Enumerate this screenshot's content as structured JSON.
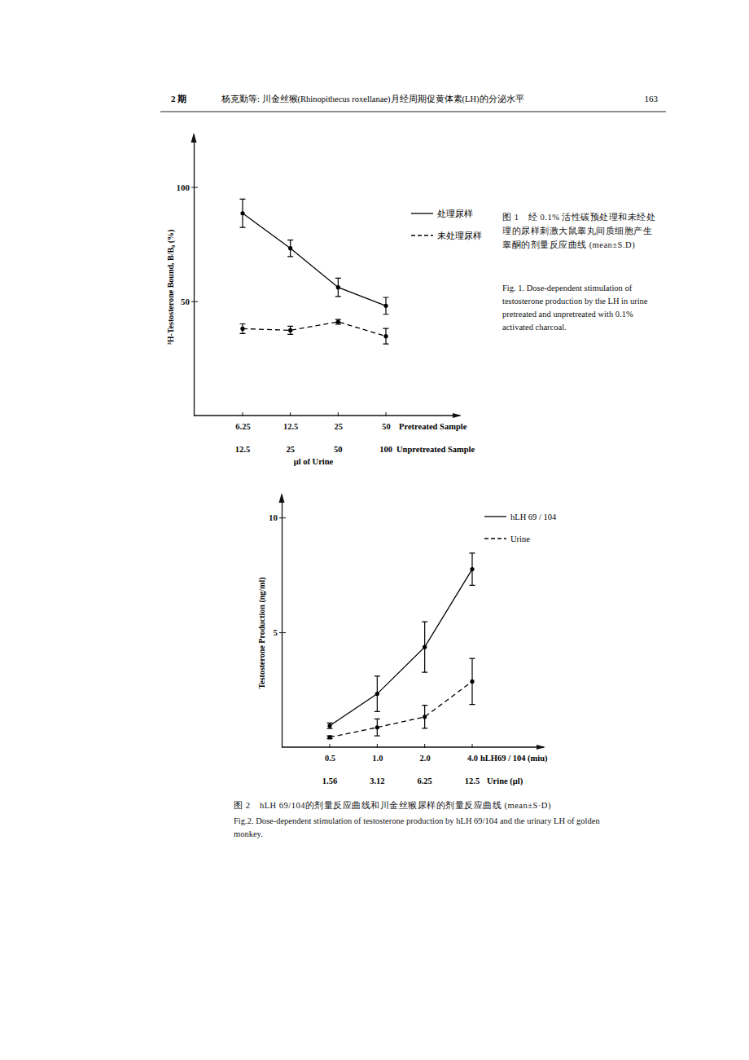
{
  "header": {
    "issue": "2 期",
    "title": "杨克勤等: 川金丝猴(Rhinopithecus roxellanae)月经周期促黄体素(LH)的分泌水平",
    "page": "163"
  },
  "chart_data": [
    {
      "type": "line",
      "y_label": "³H-Testosterone Bound, B/B₀ (%)",
      "x_label": "μl of Urine",
      "x_rows": [
        {
          "label": "Pretreated Sample",
          "categories": [
            "6.25",
            "12.5",
            "25",
            "50"
          ]
        },
        {
          "label": "Unpretreated Sample",
          "categories": [
            "12.5",
            "25",
            "50",
            "100"
          ]
        }
      ],
      "ylim": [
        0,
        123
      ],
      "yticks": [
        50,
        100
      ],
      "legend": "upper right",
      "series": [
        {
          "name": "处理尿样",
          "color": "#000000",
          "line_style": "solid",
          "marker": "circle",
          "values": [
            88.5,
            73.2,
            56.1,
            48.0
          ],
          "errors": [
            6.2,
            3.6,
            4.0,
            3.7
          ]
        },
        {
          "name": "未处理尿样",
          "color": "#000000",
          "line_style": "dashed",
          "marker": "circle",
          "values": [
            38.0,
            37.3,
            41.0,
            34.7
          ],
          "errors": [
            2.1,
            1.8,
            1.0,
            3.4
          ]
        }
      ],
      "caption_zh": "图 1　经 0.1% 活性碳预处理和未经处理的尿样刺激大鼠睾丸间质细胞产生睾酮的剂量反应曲线 (mean±S.D)",
      "caption_en": "Fig. 1. Dose-dependent stimulation of testosterone production by the LH in urine pretreated and unpretreated with 0.1% activated charcoal."
    },
    {
      "type": "line",
      "y_label": "Testosterone Production (ng/ml)",
      "x_rows": [
        {
          "label": "hLH69 / 104 (miu)",
          "categories": [
            "0.5",
            "1.0",
            "2.0",
            "4.0"
          ]
        },
        {
          "label": "Urine (μl)",
          "categories": [
            "1.56",
            "3.12",
            "6.25",
            "12.5"
          ]
        }
      ],
      "ylim": [
        0,
        11
      ],
      "yticks": [
        5,
        10
      ],
      "legend": "upper right",
      "series": [
        {
          "name": "hLH 69 / 104",
          "color": "#000000",
          "line_style": "solid",
          "marker": "circle",
          "values": [
            0.93,
            2.32,
            4.36,
            7.75
          ],
          "errors": [
            0.12,
            0.77,
            1.1,
            0.7
          ]
        },
        {
          "name": "Urine",
          "color": "#000000",
          "line_style": "dashed",
          "marker": "circle",
          "values": [
            0.43,
            0.86,
            1.32,
            2.86
          ],
          "errors": [
            0.06,
            0.37,
            0.5,
            1.0
          ]
        }
      ],
      "caption_zh": "图 2　hLH 69/104的剂量反应曲线和川金丝猴尿样的剂量反应曲线 (mean±S·D)",
      "caption_en": "Fig.2. Dose-dependent stimulation of testosterone production by hLH 69/104 and the urinary LH of golden monkey."
    }
  ]
}
